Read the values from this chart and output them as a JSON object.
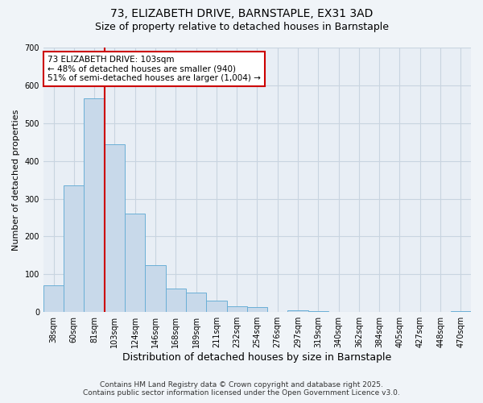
{
  "title": "73, ELIZABETH DRIVE, BARNSTAPLE, EX31 3AD",
  "subtitle": "Size of property relative to detached houses in Barnstaple",
  "xlabel": "Distribution of detached houses by size in Barnstaple",
  "ylabel": "Number of detached properties",
  "categories": [
    "38sqm",
    "60sqm",
    "81sqm",
    "103sqm",
    "124sqm",
    "146sqm",
    "168sqm",
    "189sqm",
    "211sqm",
    "232sqm",
    "254sqm",
    "276sqm",
    "297sqm",
    "319sqm",
    "340sqm",
    "362sqm",
    "384sqm",
    "405sqm",
    "427sqm",
    "448sqm",
    "470sqm"
  ],
  "values": [
    70,
    335,
    565,
    445,
    260,
    125,
    63,
    52,
    30,
    15,
    13,
    1,
    5,
    3,
    1,
    0,
    0,
    0,
    1,
    0,
    3
  ],
  "bar_color": "#c8d9ea",
  "bar_edge_color": "#6aafd6",
  "red_line_index": 3,
  "red_line_color": "#cc0000",
  "ylim": [
    0,
    700
  ],
  "yticks": [
    0,
    100,
    200,
    300,
    400,
    500,
    600,
    700
  ],
  "annotation_text": "73 ELIZABETH DRIVE: 103sqm\n← 48% of detached houses are smaller (940)\n51% of semi-detached houses are larger (1,004) →",
  "annotation_box_facecolor": "#ffffff",
  "annotation_box_edgecolor": "#cc0000",
  "footnote1": "Contains HM Land Registry data © Crown copyright and database right 2025.",
  "footnote2": "Contains public sector information licensed under the Open Government Licence v3.0.",
  "fig_facecolor": "#f0f4f8",
  "plot_facecolor": "#e8eef5",
  "grid_color": "#c8d4e0",
  "title_fontsize": 10,
  "subtitle_fontsize": 9,
  "xlabel_fontsize": 9,
  "ylabel_fontsize": 8,
  "tick_fontsize": 7,
  "annotation_fontsize": 7.5,
  "footnote_fontsize": 6.5
}
